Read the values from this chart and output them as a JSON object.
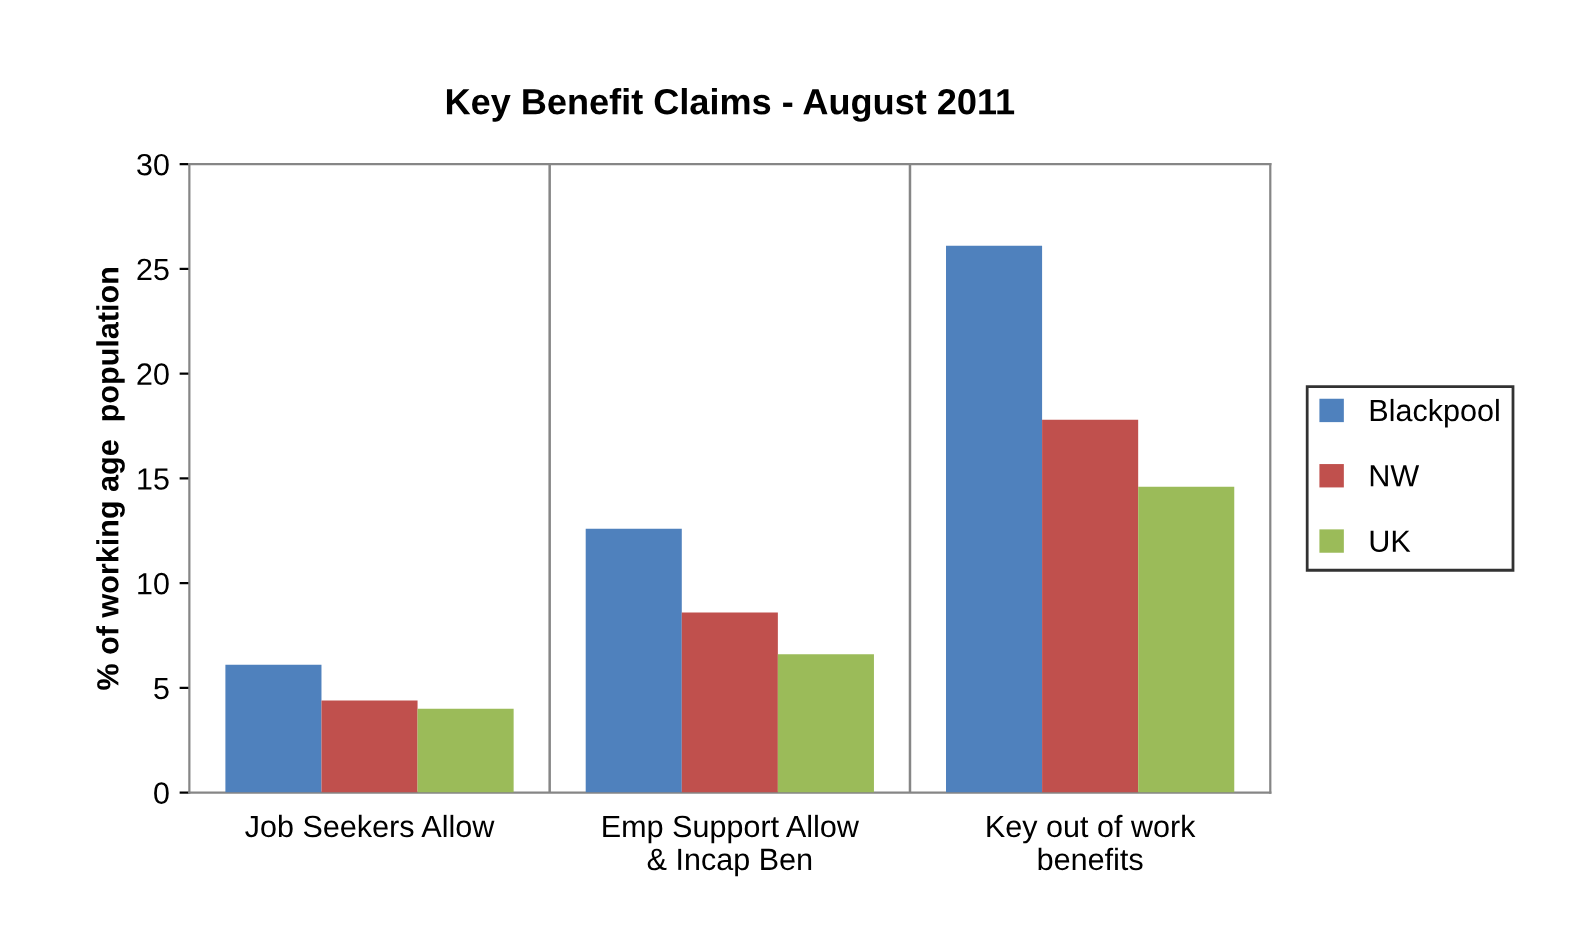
{
  "chart_data": {
    "type": "bar",
    "title": "Key Benefit Claims - August 2011",
    "ylabel": "% of working age  population",
    "categories": [
      "Job Seekers Allow",
      "Emp Support Allow\n& Incap Ben",
      "Key out of work\nbenefits"
    ],
    "series": [
      {
        "name": "Blackpool",
        "color": "#4f81bd",
        "values": [
          6.1,
          12.6,
          26.1
        ]
      },
      {
        "name": "NW",
        "color": "#c0504d",
        "values": [
          4.4,
          8.6,
          17.8
        ]
      },
      {
        "name": "UK",
        "color": "#9bbb59",
        "values": [
          4.0,
          6.6,
          14.6
        ]
      }
    ],
    "ylim": [
      0,
      30
    ],
    "yticks": [
      0,
      5,
      10,
      15,
      20,
      25,
      30
    ],
    "grid": "x",
    "legend": "right"
  }
}
